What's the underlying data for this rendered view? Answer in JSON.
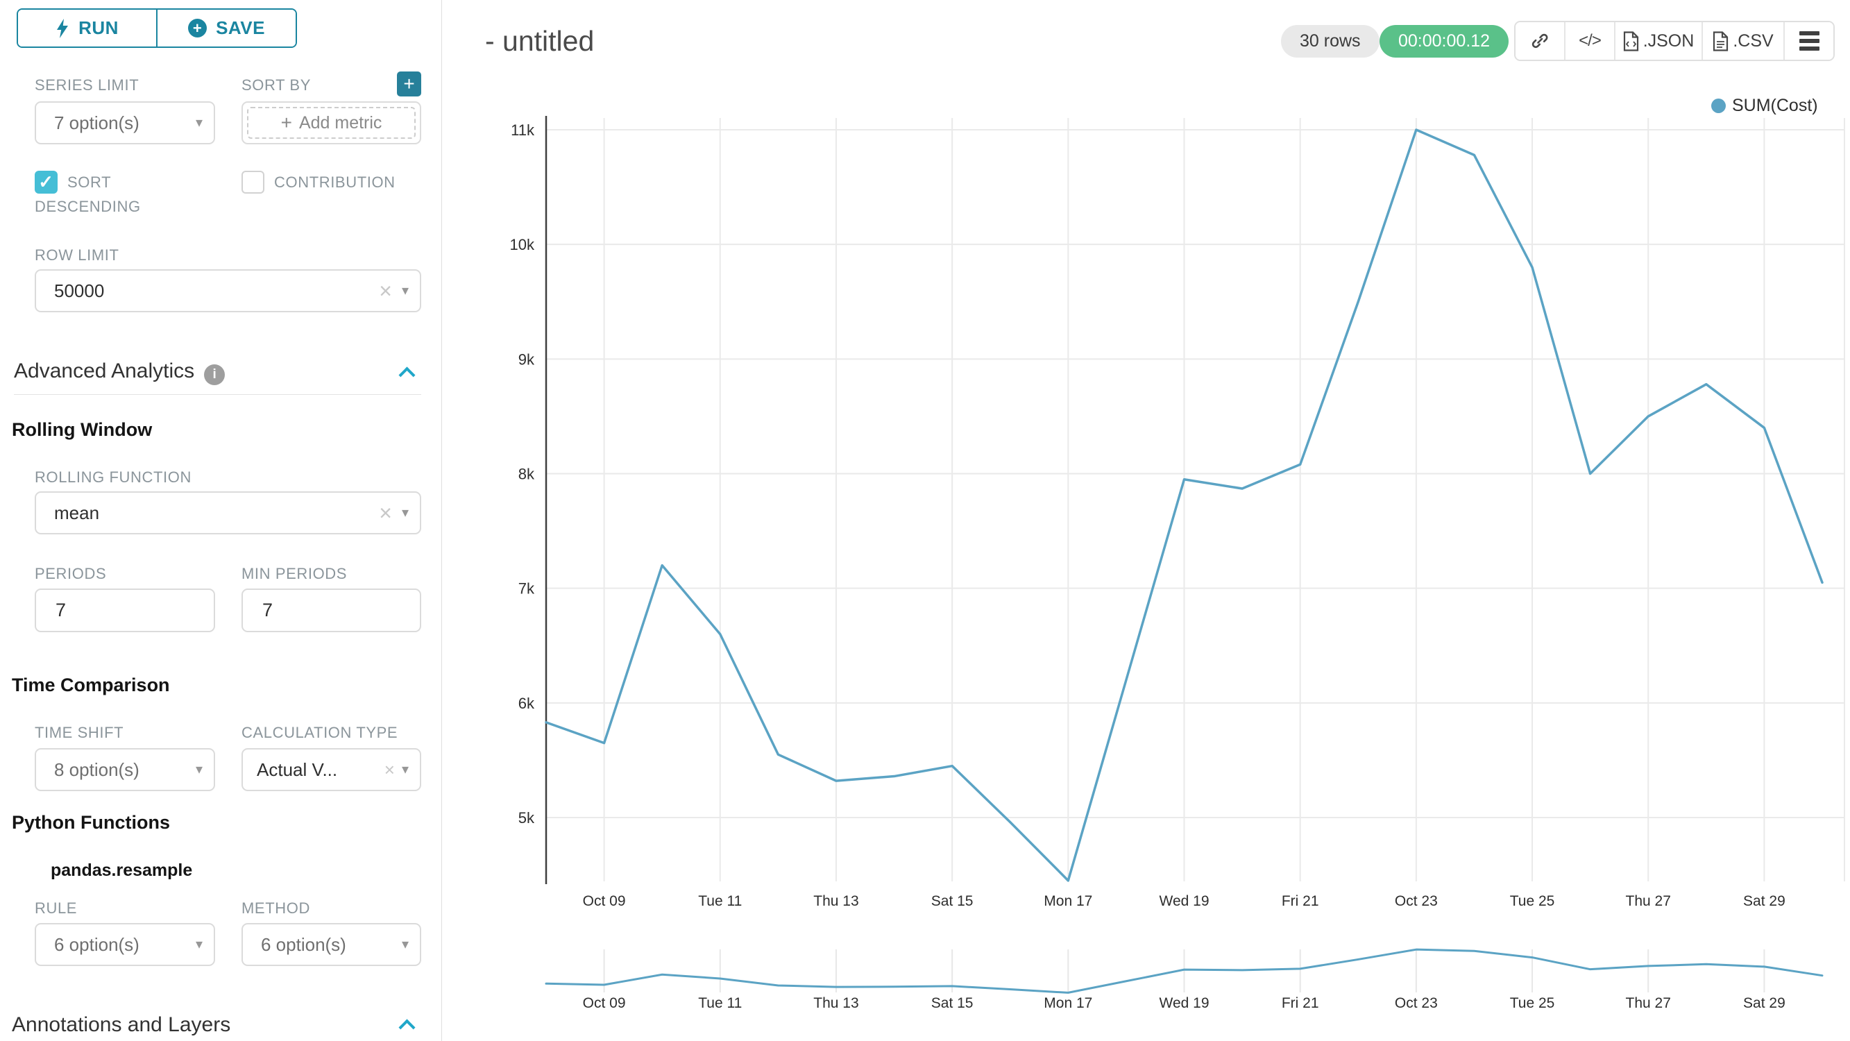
{
  "app": {
    "title": "- untitled"
  },
  "icons": {
    "plus": "+",
    "clear": "×",
    "caret": "▾",
    "check": "✓",
    "code": "</>",
    "info": "i"
  },
  "toolbar": {
    "run_label": "RUN",
    "save_label": "SAVE"
  },
  "controls": {
    "series_limit": {
      "label": "SERIES LIMIT",
      "value": "7 option(s)"
    },
    "sort_by": {
      "label": "SORT BY",
      "placeholder": "Add metric"
    },
    "sort_descending": {
      "label": "SORT DESCENDING",
      "checked": true
    },
    "contribution": {
      "label": "CONTRIBUTION",
      "checked": false
    },
    "row_limit": {
      "label": "ROW LIMIT",
      "value": "50000"
    },
    "advanced_analytics": {
      "title": "Advanced Analytics"
    },
    "rolling_window": {
      "title": "Rolling Window",
      "rolling_function": {
        "label": "ROLLING FUNCTION",
        "value": "mean"
      },
      "periods": {
        "label": "PERIODS",
        "value": "7"
      },
      "min_periods": {
        "label": "MIN PERIODS",
        "value": "7"
      }
    },
    "time_comparison": {
      "title": "Time Comparison",
      "time_shift": {
        "label": "TIME SHIFT",
        "value": "8 option(s)"
      },
      "calculation_type": {
        "label": "CALCULATION TYPE",
        "value": "Actual V..."
      }
    },
    "python_functions": {
      "title": "Python Functions",
      "subtitle": "pandas.resample",
      "rule": {
        "label": "RULE",
        "value": "6 option(s)"
      },
      "method": {
        "label": "METHOD",
        "value": "6 option(s)"
      }
    },
    "annotations": {
      "title": "Annotations and Layers"
    }
  },
  "results": {
    "rows_badge": "30 rows",
    "timer": "00:00:00.12",
    "json_label": ".JSON",
    "csv_label": ".CSV"
  },
  "chart_data": {
    "type": "line",
    "title": "- untitled",
    "legend": {
      "label": "SUM(Cost)"
    },
    "grid": true,
    "legend_position": "top-right",
    "x": [
      "Oct 08",
      "Oct 09",
      "Oct 10",
      "Oct 11",
      "Oct 12",
      "Oct 13",
      "Oct 14",
      "Oct 15",
      "Oct 16",
      "Oct 17",
      "Oct 18",
      "Oct 19",
      "Oct 20",
      "Oct 21",
      "Oct 22",
      "Oct 23",
      "Oct 24",
      "Oct 25",
      "Oct 26",
      "Oct 27",
      "Oct 28",
      "Oct 29",
      "Oct 30"
    ],
    "series": [
      {
        "name": "SUM(Cost)",
        "color": "#5BA3C4",
        "values": [
          5830,
          5650,
          7200,
          6600,
          5550,
          5320,
          5360,
          5450,
          4960,
          4450,
          6200,
          7950,
          7870,
          8080,
          9500,
          11000,
          10780,
          9800,
          8000,
          8500,
          8780,
          8400,
          7050
        ]
      }
    ],
    "x_ticks": [
      {
        "index": 1,
        "label": "Oct 09"
      },
      {
        "index": 3,
        "label": "Tue 11"
      },
      {
        "index": 5,
        "label": "Thu 13"
      },
      {
        "index": 7,
        "label": "Sat 15"
      },
      {
        "index": 9,
        "label": "Mon 17"
      },
      {
        "index": 11,
        "label": "Wed 19"
      },
      {
        "index": 13,
        "label": "Fri 21"
      },
      {
        "index": 15,
        "label": "Oct 23"
      },
      {
        "index": 17,
        "label": "Tue 25"
      },
      {
        "index": 19,
        "label": "Thu 27"
      },
      {
        "index": 21,
        "label": "Sat 29"
      }
    ],
    "y_ticks": [
      {
        "value": 5000,
        "label": "5k"
      },
      {
        "value": 6000,
        "label": "6k"
      },
      {
        "value": 7000,
        "label": "7k"
      },
      {
        "value": 8000,
        "label": "8k"
      },
      {
        "value": 9000,
        "label": "9k"
      },
      {
        "value": 10000,
        "label": "10k"
      },
      {
        "value": 11000,
        "label": "11k"
      }
    ],
    "ylim": [
      4300,
      11150
    ],
    "mini_preview": true
  }
}
